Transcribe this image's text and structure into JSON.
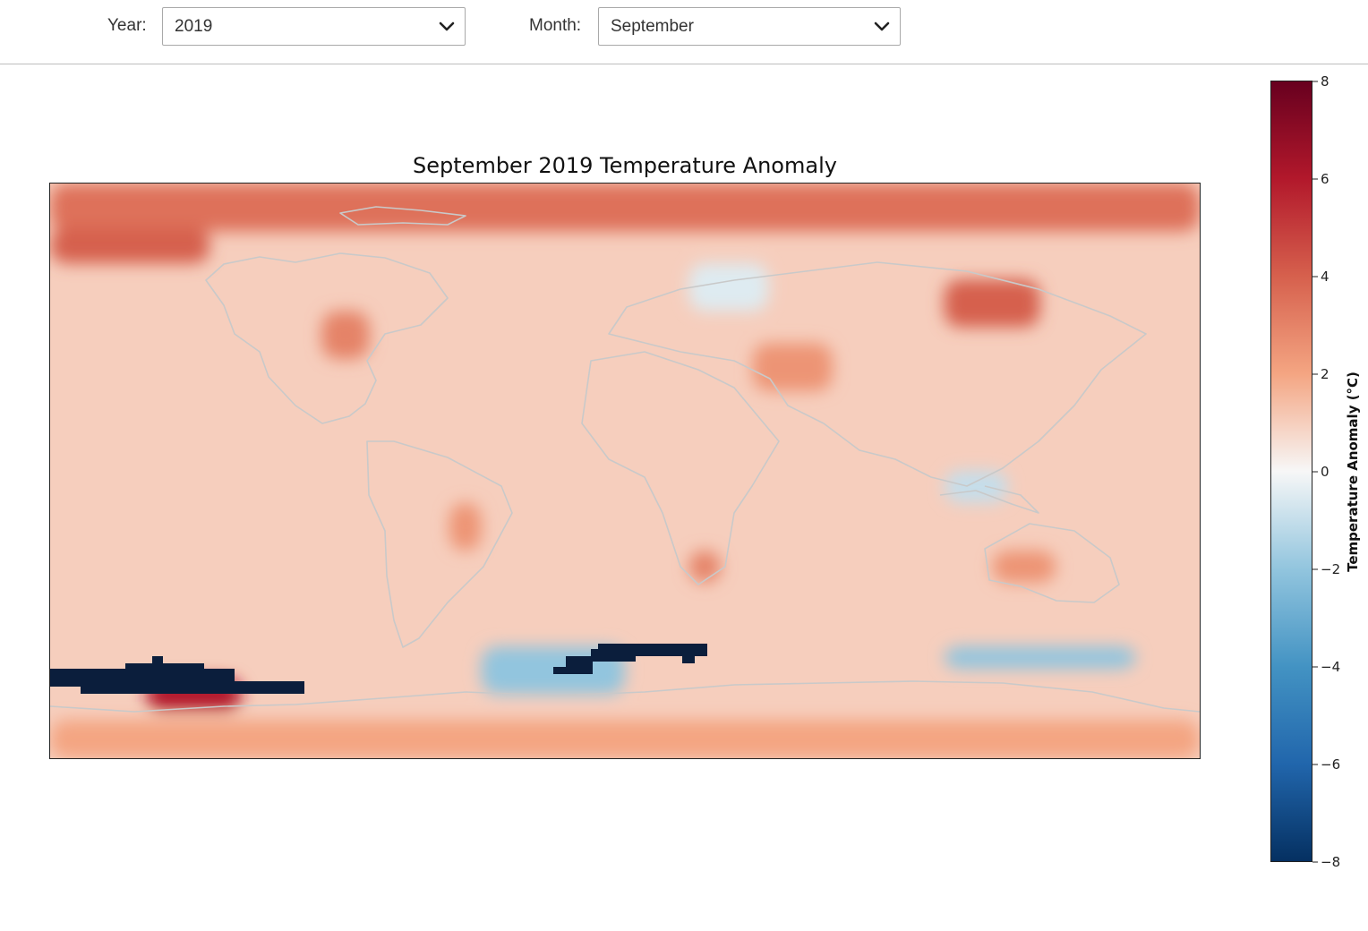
{
  "controls": {
    "year_label": "Year:",
    "year_value": "2019",
    "month_label": "Month:",
    "month_value": "September"
  },
  "chart_data": {
    "type": "heatmap",
    "title": "September 2019 Temperature Anomaly",
    "projection": "equirectangular world map with coastlines",
    "colormap": "RdBu_r",
    "colorbar": {
      "label": "Temperature Anomaly (°C)",
      "range": [
        -8,
        8
      ],
      "ticks": [
        8,
        6,
        4,
        2,
        0,
        -2,
        -4,
        -6,
        -8
      ],
      "tick_labels": [
        "8",
        "6",
        "4",
        "2",
        "0",
        "−2",
        "−4",
        "−6",
        "−8"
      ]
    },
    "x_range_lon": [
      -180,
      180
    ],
    "y_range_lat": [
      -90,
      90
    ],
    "background_anomaly": 1,
    "anomalies": [
      {
        "region": "north polar band",
        "lon": [
          -180,
          180
        ],
        "lat": [
          75,
          90
        ],
        "value": 3.5
      },
      {
        "region": "arctic canada",
        "lon": [
          -180,
          -130
        ],
        "lat": [
          65,
          76
        ],
        "value": 4
      },
      {
        "region": "siberia",
        "lon": [
          100,
          130
        ],
        "lat": [
          45,
          60
        ],
        "value": 4
      },
      {
        "region": "eastern north america",
        "lon": [
          -95,
          -80
        ],
        "lat": [
          35,
          50
        ],
        "value": 3
      },
      {
        "region": "central europe",
        "lon": [
          20,
          45
        ],
        "lat": [
          50,
          65
        ],
        "value": -0.5
      },
      {
        "region": "middle east",
        "lon": [
          40,
          65
        ],
        "lat": [
          25,
          40
        ],
        "value": 2.5
      },
      {
        "region": "brazil",
        "lon": [
          -55,
          -45
        ],
        "lat": [
          -25,
          -10
        ],
        "value": 2.5
      },
      {
        "region": "southern africa",
        "lon": [
          20,
          30
        ],
        "lat": [
          -35,
          -25
        ],
        "value": 3
      },
      {
        "region": "australia",
        "lon": [
          115,
          135
        ],
        "lat": [
          -35,
          -25
        ],
        "value": 2.5
      },
      {
        "region": "maritime continent",
        "lon": [
          100,
          120
        ],
        "lat": [
          -10,
          0
        ],
        "value": -1
      },
      {
        "region": "southern ocean atlantic",
        "lon": [
          -45,
          0
        ],
        "lat": [
          -70,
          -55
        ],
        "value": -2
      },
      {
        "region": "southern ocean indian",
        "lon": [
          100,
          160
        ],
        "lat": [
          -62,
          -55
        ],
        "value": -2
      },
      {
        "region": "ross sea region",
        "lon": [
          -150,
          -120
        ],
        "lat": [
          -75,
          -65
        ],
        "value": 6
      },
      {
        "region": "south polar band",
        "lon": [
          -180,
          180
        ],
        "lat": [
          -90,
          -78
        ],
        "value": 2
      }
    ],
    "missing_data_regions": [
      "south pacific sector near 55-65°S",
      "south atlantic sector near 50-55°S"
    ]
  }
}
